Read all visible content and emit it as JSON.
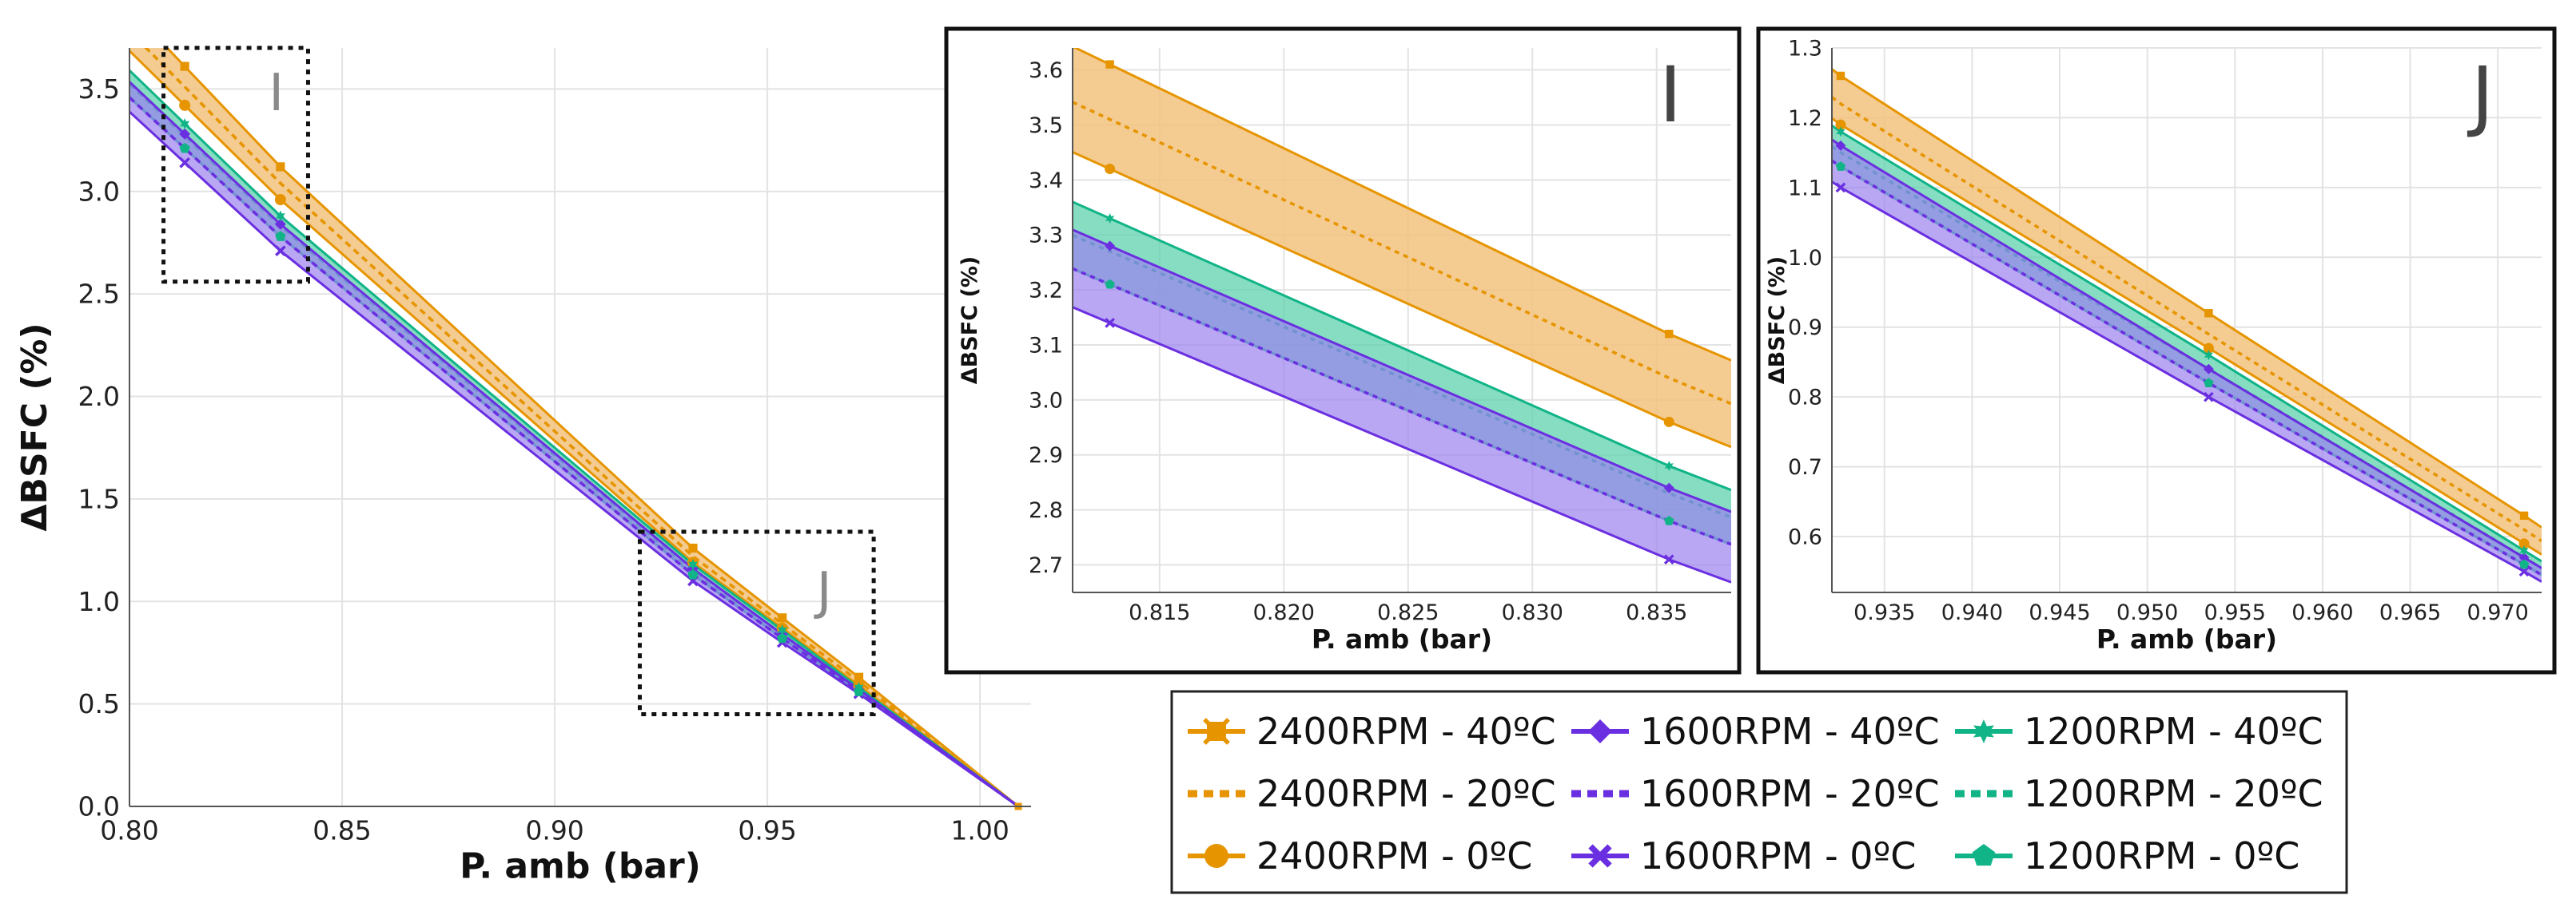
{
  "colors": {
    "rpm2400": "#E69500",
    "rpm2400_fill": "#F2C27E",
    "rpm1600": "#6A2FE0",
    "rpm1600_fill": "#9B82F0",
    "rpm1200": "#10B487",
    "rpm1200_fill": "#5FD1AE",
    "overlap_fill": "#3F6FD6",
    "grid": "#E3E3E3",
    "frame": "#111111",
    "zoom_box": "#111111"
  },
  "chart_data": [
    {
      "id": "main",
      "type": "line",
      "title": "",
      "xlabel": "P. amb (bar)",
      "ylabel": "ΔBSFC (%)",
      "xlim": [
        0.8,
        1.012
      ],
      "ylim": [
        0.0,
        3.7
      ],
      "xticks": [
        "0.80",
        "0.85",
        "0.90",
        "0.95",
        "1.00"
      ],
      "yticks": [
        "0.0",
        "0.5",
        "1.0",
        "1.5",
        "2.0",
        "2.5",
        "3.0",
        "3.5"
      ],
      "grid": true,
      "zoom_boxes": [
        {
          "label": "I",
          "x": [
            0.808,
            0.842
          ],
          "y": [
            2.56,
            3.7
          ]
        },
        {
          "label": "J",
          "x": [
            0.92,
            0.975
          ],
          "y": [
            0.45,
            1.34
          ]
        }
      ],
      "x": [
        0.813,
        0.8355,
        0.9325,
        0.9535,
        0.9715,
        1.009
      ],
      "series": [
        {
          "name": "2400RPM - 40ºC",
          "values": [
            3.61,
            3.12,
            1.26,
            0.92,
            0.63,
            0.0
          ]
        },
        {
          "name": "2400RPM - 20ºC",
          "values": [
            3.51,
            3.04,
            1.22,
            0.89,
            0.61,
            0.0
          ]
        },
        {
          "name": "2400RPM - 0ºC",
          "values": [
            3.42,
            2.96,
            1.19,
            0.87,
            0.59,
            0.0
          ]
        },
        {
          "name": "1600RPM - 40ºC",
          "values": [
            3.28,
            2.84,
            1.16,
            0.84,
            0.57,
            0.0
          ]
        },
        {
          "name": "1600RPM - 20ºC",
          "values": [
            3.21,
            2.78,
            1.13,
            0.82,
            0.56,
            0.0
          ]
        },
        {
          "name": "1600RPM - 0ºC",
          "values": [
            3.14,
            2.71,
            1.1,
            0.8,
            0.55,
            0.0
          ]
        },
        {
          "name": "1200RPM - 40ºC",
          "values": [
            3.33,
            2.88,
            1.18,
            0.86,
            0.58,
            0.0
          ]
        },
        {
          "name": "1200RPM - 20ºC",
          "values": [
            3.27,
            2.83,
            1.15,
            0.84,
            0.57,
            0.0
          ]
        },
        {
          "name": "1200RPM - 0ºC",
          "values": [
            3.21,
            2.78,
            1.13,
            0.82,
            0.56,
            0.0
          ]
        }
      ]
    },
    {
      "id": "inset_I",
      "type": "line",
      "label": "I",
      "xlabel": "P. amb (bar)",
      "ylabel": "ΔBSFC (%)",
      "xlim": [
        0.8115,
        0.838
      ],
      "ylim": [
        2.65,
        3.64
      ],
      "xticks": [
        "0.815",
        "0.820",
        "0.825",
        "0.830",
        "0.835"
      ],
      "yticks": [
        "2.7",
        "2.8",
        "2.9",
        "3.0",
        "3.1",
        "3.2",
        "3.3",
        "3.4",
        "3.5",
        "3.6"
      ],
      "grid": true
    },
    {
      "id": "inset_J",
      "type": "line",
      "label": "J",
      "xlabel": "P. amb (bar)",
      "ylabel": "ΔBSFC (%)",
      "xlim": [
        0.932,
        0.9725
      ],
      "ylim": [
        0.52,
        1.3
      ],
      "xticks": [
        "0.935",
        "0.940",
        "0.945",
        "0.950",
        "0.955",
        "0.960",
        "0.965",
        "0.970"
      ],
      "yticks": [
        "0.6",
        "0.7",
        "0.8",
        "0.9",
        "1.0",
        "1.1",
        "1.2",
        "1.3"
      ],
      "grid": true
    }
  ],
  "legend": [
    [
      {
        "label": "2400RPM - 40ºC",
        "color": "#E69500",
        "style": "solid",
        "marker": "x-square"
      },
      {
        "label": "1600RPM - 40ºC",
        "color": "#6A2FE0",
        "style": "solid",
        "marker": "diamond"
      },
      {
        "label": "1200RPM - 40ºC",
        "color": "#10B487",
        "style": "solid",
        "marker": "star"
      }
    ],
    [
      {
        "label": "2400RPM - 20ºC",
        "color": "#E69500",
        "style": "dotted",
        "marker": "none"
      },
      {
        "label": "1600RPM - 20ºC",
        "color": "#6A2FE0",
        "style": "dotted",
        "marker": "none"
      },
      {
        "label": "1200RPM - 20ºC",
        "color": "#10B487",
        "style": "dotted",
        "marker": "none"
      }
    ],
    [
      {
        "label": "2400RPM - 0ºC",
        "color": "#E69500",
        "style": "solid",
        "marker": "circle"
      },
      {
        "label": "1600RPM - 0ºC",
        "color": "#6A2FE0",
        "style": "solid",
        "marker": "x"
      },
      {
        "label": "1200RPM - 0ºC",
        "color": "#10B487",
        "style": "solid",
        "marker": "pentagon"
      }
    ]
  ]
}
